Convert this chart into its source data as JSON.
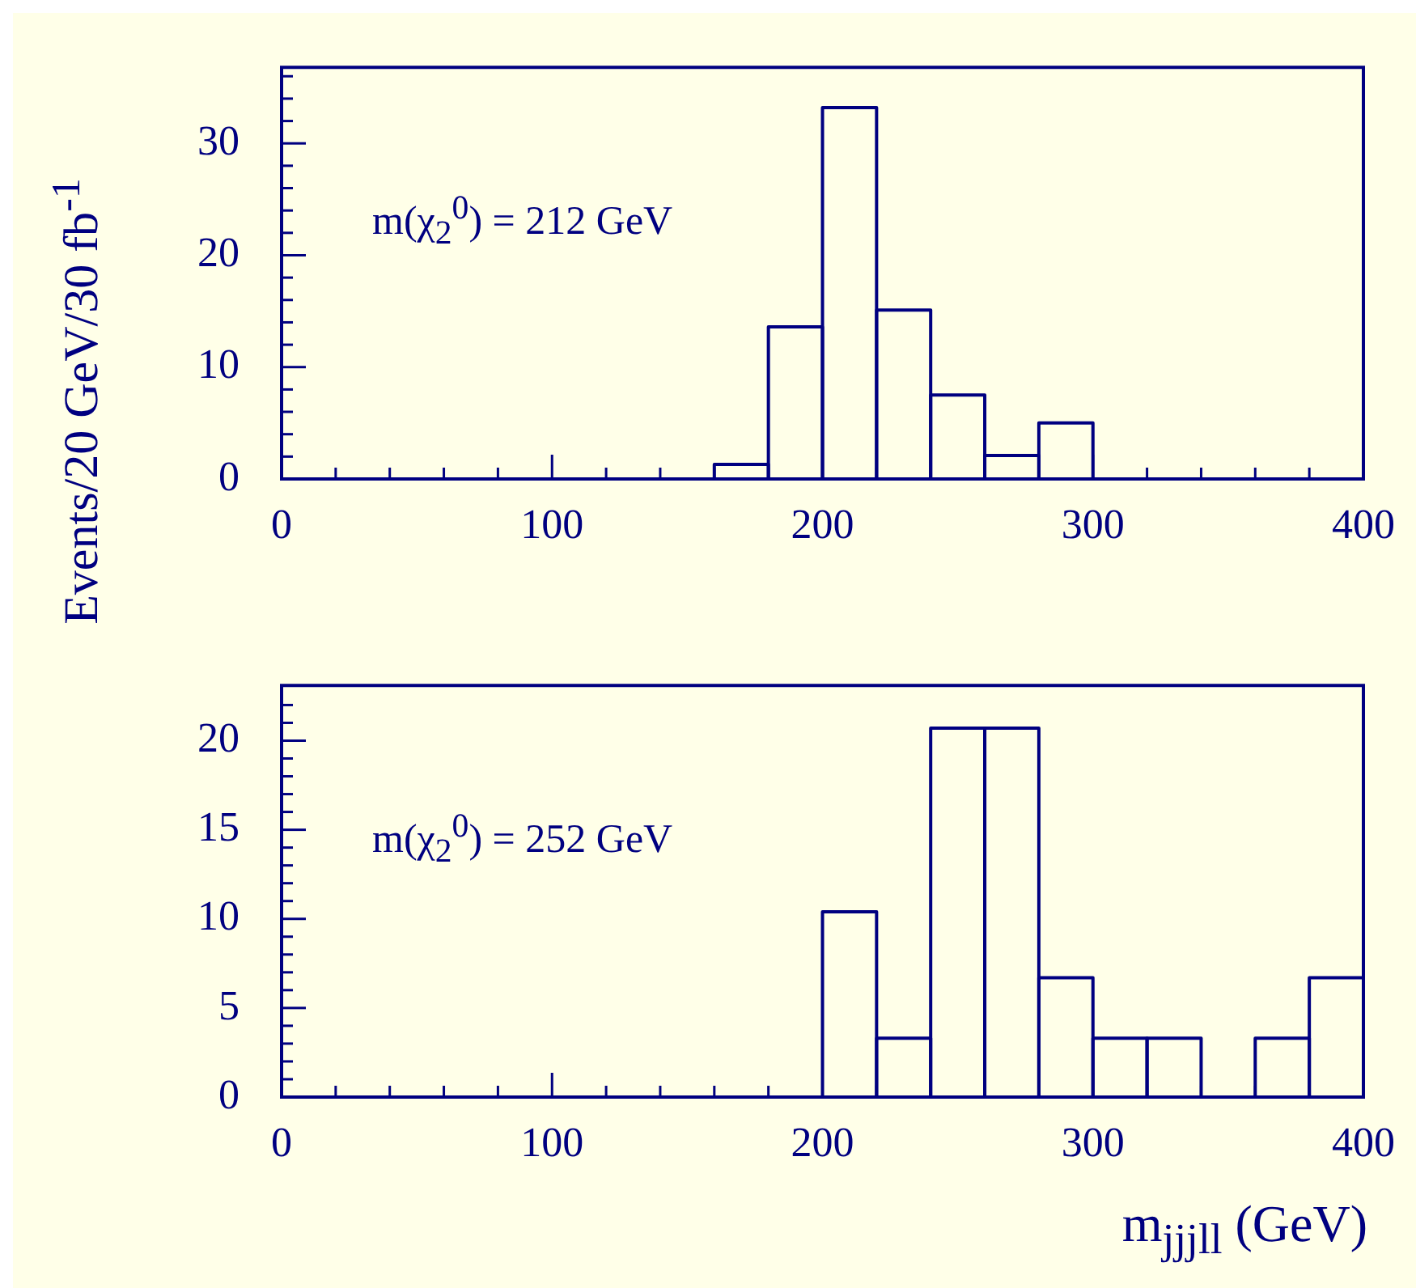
{
  "chart_data": [
    {
      "type": "histogram",
      "ylabel": "Events/20 GeV/30 fb$^{-1}$",
      "color": "#000080",
      "bins": [
        0,
        20,
        40,
        60,
        80,
        100,
        120,
        140,
        160,
        180,
        200,
        220,
        240,
        260,
        280,
        300,
        320,
        340,
        360,
        380,
        400
      ],
      "values": [
        0,
        0,
        0,
        0,
        0,
        0,
        0,
        0,
        1.3,
        13.6,
        33.2,
        15.1,
        7.5,
        2.1,
        5.0,
        0,
        0,
        0,
        0,
        0
      ],
      "xlim": [
        0,
        400
      ],
      "ylim": [
        0,
        36.8
      ],
      "xticks": [
        0,
        {
          "value": 20,
          "label": null
        },
        {
          "value": 40,
          "label": null
        },
        {
          "value": 60,
          "label": null
        },
        {
          "value": 80,
          "label": null
        },
        100,
        {
          "value": 120,
          "label": null
        },
        {
          "value": 140,
          "label": null
        },
        {
          "value": 160,
          "label": null
        },
        {
          "value": 180,
          "label": null
        },
        200,
        {
          "value": 220,
          "label": null
        },
        {
          "value": 240,
          "label": null
        },
        {
          "value": 260,
          "label": null
        },
        {
          "value": 280,
          "label": null
        },
        300,
        {
          "value": 320,
          "label": null
        },
        {
          "value": 340,
          "label": null
        },
        {
          "value": 360,
          "label": null
        },
        {
          "value": 380,
          "label": null
        },
        400
      ],
      "yticks": [
        0,
        {
          "value": 2,
          "label": null
        },
        {
          "value": 4,
          "label": null
        },
        {
          "value": 6,
          "label": null
        },
        {
          "value": 8,
          "label": null
        },
        10,
        {
          "value": 12,
          "label": null
        },
        {
          "value": 14,
          "label": null
        },
        {
          "value": 16,
          "label": null
        },
        {
          "value": 18,
          "label": null
        },
        20,
        {
          "value": 22,
          "label": null
        },
        {
          "value": 24,
          "label": null
        },
        {
          "value": 26,
          "label": null
        },
        {
          "value": 28,
          "label": null
        },
        30,
        {
          "value": 32,
          "label": null
        },
        {
          "value": 34,
          "label": null
        },
        {
          "value": 36,
          "label": null
        }
      ],
      "annotations": [
        "m(χ$_{2}$$^{0}$) = 212 GeV"
      ]
    },
    {
      "type": "histogram",
      "xlabel": "m$_{jjjll}$ (GeV)",
      "color": "#000080",
      "bins": [
        0,
        20,
        40,
        60,
        80,
        100,
        120,
        140,
        160,
        180,
        200,
        220,
        240,
        260,
        280,
        300,
        320,
        340,
        360,
        380,
        400
      ],
      "values": [
        0,
        0,
        0,
        0,
        0,
        0,
        0,
        0,
        0,
        0,
        10.4,
        3.3,
        20.7,
        20.7,
        6.7,
        3.3,
        3.3,
        0,
        3.3,
        6.7
      ],
      "xlim": [
        0,
        400
      ],
      "ylim": [
        0,
        23.1
      ],
      "xticks": [
        0,
        {
          "value": 20,
          "label": null
        },
        {
          "value": 40,
          "label": null
        },
        {
          "value": 60,
          "label": null
        },
        {
          "value": 80,
          "label": null
        },
        100,
        {
          "value": 120,
          "label": null
        },
        {
          "value": 140,
          "label": null
        },
        {
          "value": 160,
          "label": null
        },
        {
          "value": 180,
          "label": null
        },
        200,
        {
          "value": 220,
          "label": null
        },
        {
          "value": 240,
          "label": null
        },
        {
          "value": 260,
          "label": null
        },
        {
          "value": 280,
          "label": null
        },
        300,
        {
          "value": 320,
          "label": null
        },
        {
          "value": 340,
          "label": null
        },
        {
          "value": 360,
          "label": null
        },
        {
          "value": 380,
          "label": null
        },
        400
      ],
      "yticks": [
        0,
        {
          "value": 1,
          "label": null
        },
        {
          "value": 2,
          "label": null
        },
        {
          "value": 3,
          "label": null
        },
        {
          "value": 4,
          "label": null
        },
        5,
        {
          "value": 6,
          "label": null
        },
        {
          "value": 7,
          "label": null
        },
        {
          "value": 8,
          "label": null
        },
        {
          "value": 9,
          "label": null
        },
        10,
        {
          "value": 11,
          "label": null
        },
        {
          "value": 12,
          "label": null
        },
        {
          "value": 13,
          "label": null
        },
        {
          "value": 14,
          "label": null
        },
        15,
        {
          "value": 16,
          "label": null
        },
        {
          "value": 17,
          "label": null
        },
        {
          "value": 18,
          "label": null
        },
        {
          "value": 19,
          "label": null
        },
        20,
        {
          "value": 21,
          "label": null
        },
        {
          "value": 22,
          "label": null
        }
      ],
      "annotations": [
        "m(χ$_{2}$$^{0}$) = 252 GeV"
      ]
    }
  ]
}
